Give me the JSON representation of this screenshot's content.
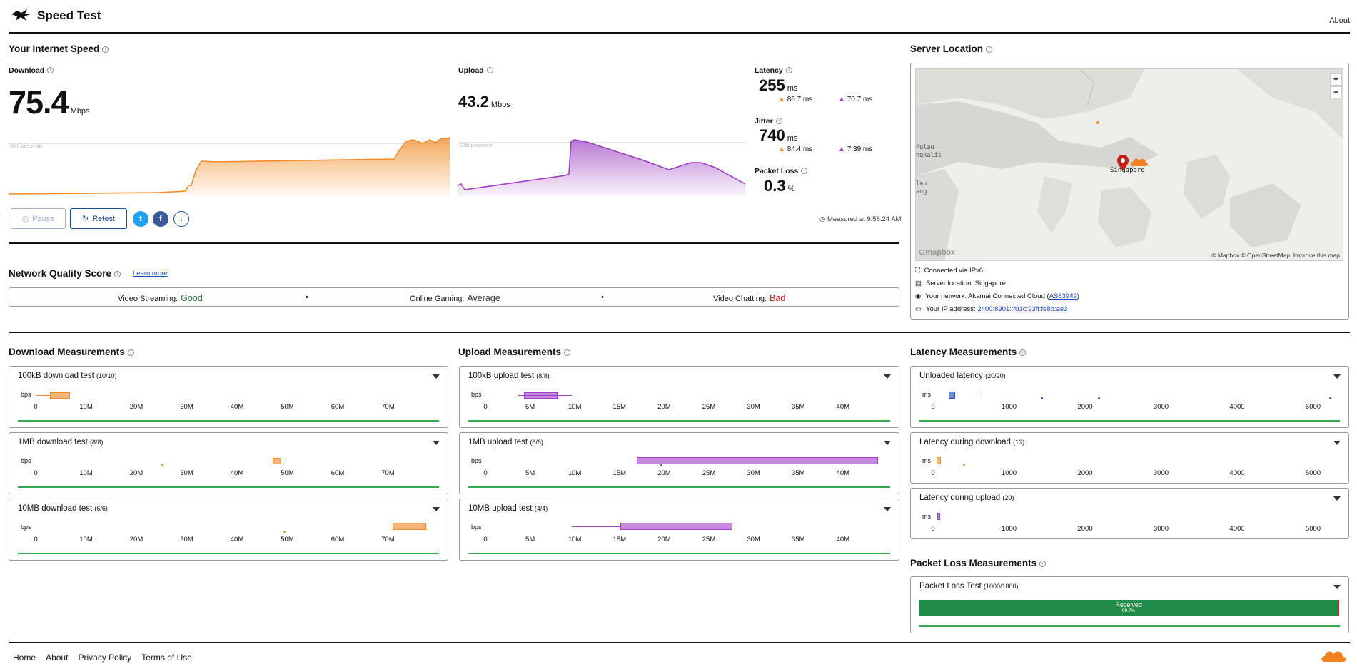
{
  "header": {
    "title": "Speed Test",
    "about": "About"
  },
  "speed": {
    "section_title": "Your Internet Speed",
    "download": {
      "label": "Download",
      "value": "75.4",
      "unit": "Mbps",
      "percentile": "90th percentile"
    },
    "upload": {
      "label": "Upload",
      "value": "43.2",
      "unit": "Mbps",
      "percentile": "90th percentile"
    },
    "latency": {
      "label": "Latency",
      "value": "255",
      "unit": "ms",
      "down": "86.7 ms",
      "up": "70.7 ms"
    },
    "jitter": {
      "label": "Jitter",
      "value": "740",
      "unit": "ms",
      "down": "84.4 ms",
      "up": "7.39 ms"
    },
    "packet_loss": {
      "label": "Packet Loss",
      "value": "0.3",
      "unit": "%"
    },
    "buttons": {
      "pause": "Pause",
      "retest": "Retest"
    },
    "measured_at": "Measured at 9:58:24 AM"
  },
  "quality": {
    "title": "Network Quality Score",
    "learn_more": "Learn more",
    "streaming": {
      "label": "Video Streaming:",
      "value": "Good",
      "color": "#2b7a3b"
    },
    "gaming": {
      "label": "Online Gaming:",
      "value": "Average",
      "color": "#333333"
    },
    "chatting": {
      "label": "Video Chatting:",
      "value": "Bad",
      "color": "#d02020"
    },
    "sep": "•"
  },
  "server": {
    "title": "Server Location",
    "map_attrib": "© Mapbox © OpenStreetMap",
    "improve": "Improve this map",
    "mapbox_logo": "mapbox",
    "city_label": "Singapore",
    "place_1": "Pulau",
    "place_2": "ngkalis",
    "place_3": "lau",
    "place_4": "ang",
    "zoom_in": "+",
    "zoom_out": "−",
    "connected": "Connected via IPv6",
    "location": "Server location: Singapore",
    "network_prefix": "Your network: Akamai Connected Cloud (",
    "network_asn": "AS63949",
    "network_suffix": ")",
    "ip_prefix": "Your IP address: ",
    "ip": "2400:8901::f03c:93ff:fe8b:ae3"
  },
  "download_measurements": {
    "title": "Download Measurements",
    "unit": "bps",
    "ticks": [
      "0",
      "10M",
      "20M",
      "30M",
      "40M",
      "50M",
      "60M",
      "70M"
    ],
    "tests": [
      {
        "name": "100kB download test",
        "count": "(10/10)"
      },
      {
        "name": "1MB download test",
        "count": "(8/8)"
      },
      {
        "name": "10MB download test",
        "count": "(6/6)"
      }
    ]
  },
  "upload_measurements": {
    "title": "Upload Measurements",
    "unit": "bps",
    "ticks": [
      "0",
      "5M",
      "10M",
      "15M",
      "20M",
      "25M",
      "30M",
      "35M",
      "40M"
    ],
    "tests": [
      {
        "name": "100kB upload test",
        "count": "(8/8)"
      },
      {
        "name": "1MB upload test",
        "count": "(6/6)"
      },
      {
        "name": "10MB upload test",
        "count": "(4/4)"
      }
    ]
  },
  "latency_measurements": {
    "title": "Latency Measurements",
    "unit": "ms",
    "ticks": [
      "0",
      "1000",
      "2000",
      "3000",
      "4000",
      "5000"
    ],
    "tests": [
      {
        "name": "Unloaded latency",
        "count": "(20/20)"
      },
      {
        "name": "Latency during download",
        "count": "(13)"
      },
      {
        "name": "Latency during upload",
        "count": "(20)"
      }
    ]
  },
  "packet_loss_measurements": {
    "title": "Packet Loss Measurements",
    "test_name": "Packet Loss Test",
    "count": "(1000/1000)",
    "received_label": "Received",
    "received_pct": "99.7%",
    "received_fraction": 0.997
  },
  "footer": {
    "links": [
      "Home",
      "About",
      "Privacy Policy",
      "Terms of Use"
    ]
  },
  "colors": {
    "download": "#f28c28",
    "upload": "#9c3fc0",
    "latency_unloaded": "#2255cc",
    "good": "#2b7a3b",
    "bad": "#d02020",
    "bar_green": "#208a48"
  }
}
